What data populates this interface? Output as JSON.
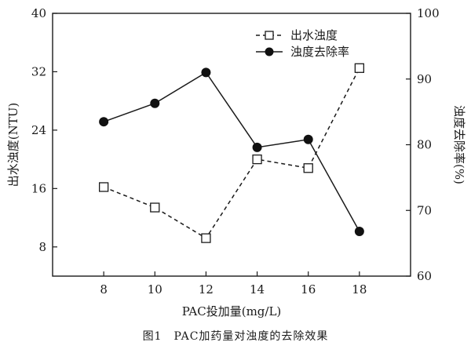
{
  "caption": "图1　PAC加药量对浊度的去除效果",
  "chart_data": {
    "type": "line",
    "x": [
      8,
      10,
      12,
      14,
      16,
      18
    ],
    "x_ticks": [
      "8",
      "10",
      "12",
      "14",
      "16",
      "18"
    ],
    "xlabel": "PAC投加量(mg/L)",
    "y_left": {
      "label": "出水浊度(NTU)",
      "lim": [
        4,
        40
      ],
      "ticks": [
        "8",
        "16",
        "24",
        "32",
        "40"
      ]
    },
    "y_right": {
      "label": "浊度去除率(%)",
      "lim": [
        60,
        100
      ],
      "ticks": [
        "60",
        "70",
        "80",
        "90",
        "100"
      ]
    },
    "series": [
      {
        "name": "出水浊度",
        "axis": "left",
        "marker": "open-square",
        "line_style": "dashed",
        "values": [
          16.2,
          13.4,
          9.2,
          20.0,
          18.8,
          32.5
        ]
      },
      {
        "name": "浊度去除率",
        "axis": "right",
        "marker": "filled-circle",
        "line_style": "solid",
        "values": [
          83.5,
          86.3,
          91.0,
          79.6,
          80.8,
          66.8
        ]
      }
    ],
    "legend_position": "top-right",
    "grid": false
  }
}
